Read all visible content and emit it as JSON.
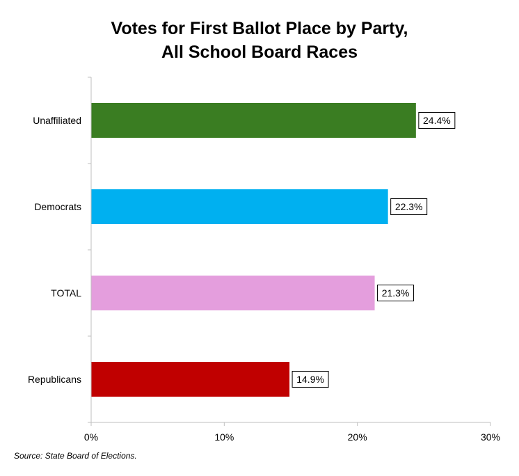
{
  "chart_data": {
    "type": "bar",
    "orientation": "horizontal",
    "title_lines": [
      "Votes for First Ballot Place by Party,",
      "All School Board Races"
    ],
    "categories": [
      "Unaffiliated",
      "Democrats",
      "TOTAL",
      "Republicans"
    ],
    "values": [
      24.4,
      22.3,
      21.3,
      14.9
    ],
    "value_labels": [
      "24.4%",
      "22.3%",
      "21.3%",
      "14.9%"
    ],
    "colors": [
      "#3a7d22",
      "#00b0f0",
      "#e49edd",
      "#c00000"
    ],
    "xlim": [
      0,
      30
    ],
    "x_ticks": [
      0,
      10,
      20,
      30
    ],
    "x_tick_labels": [
      "0%",
      "10%",
      "20%",
      "30%"
    ],
    "xlabel": "",
    "ylabel": "",
    "grid": false,
    "legend": "none"
  },
  "source": "Source: State Board of Elections."
}
